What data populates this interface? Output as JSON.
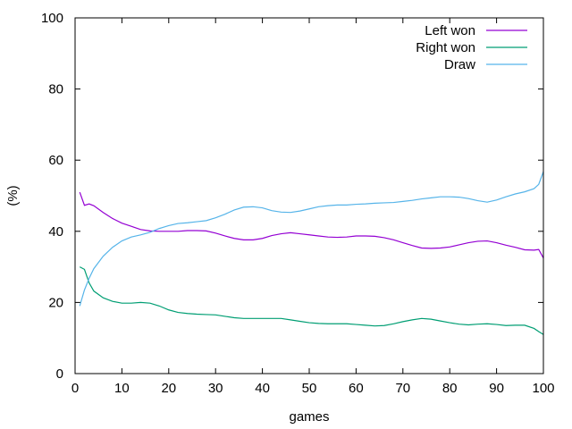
{
  "chart_data": {
    "type": "line",
    "title": "",
    "xlabel": "games",
    "ylabel": "(%)",
    "xlim": [
      0,
      100
    ],
    "ylim": [
      0,
      100
    ],
    "x_ticks": [
      0,
      10,
      20,
      30,
      40,
      50,
      60,
      70,
      80,
      90,
      100
    ],
    "y_ticks": [
      0,
      20,
      40,
      60,
      80,
      100
    ],
    "grid": false,
    "legend_position": "top-right",
    "series": [
      {
        "name": "Left won",
        "color": "#9400d3",
        "x": [
          1,
          2,
          3,
          4,
          6,
          8,
          10,
          12,
          14,
          16,
          18,
          20,
          22,
          24,
          26,
          28,
          30,
          32,
          34,
          36,
          38,
          40,
          42,
          44,
          46,
          48,
          50,
          52,
          54,
          56,
          58,
          60,
          62,
          64,
          66,
          68,
          70,
          72,
          74,
          76,
          78,
          80,
          82,
          84,
          86,
          88,
          90,
          92,
          94,
          96,
          98,
          99,
          100
        ],
        "y": [
          51,
          47.3,
          47.7,
          47.2,
          45.3,
          43.6,
          42.3,
          41.4,
          40.5,
          40.1,
          40.0,
          40.0,
          40.0,
          40.2,
          40.2,
          40.1,
          39.5,
          38.7,
          38.0,
          37.6,
          37.6,
          38.0,
          38.8,
          39.3,
          39.6,
          39.3,
          39.0,
          38.7,
          38.4,
          38.3,
          38.4,
          38.7,
          38.7,
          38.6,
          38.2,
          37.6,
          36.8,
          36.0,
          35.3,
          35.2,
          35.3,
          35.6,
          36.2,
          36.8,
          37.2,
          37.3,
          36.8,
          36.1,
          35.5,
          34.8,
          34.7,
          34.9,
          32.5
        ]
      },
      {
        "name": "Right won",
        "color": "#009e73",
        "x": [
          1,
          2,
          3,
          4,
          6,
          8,
          10,
          12,
          14,
          16,
          18,
          20,
          22,
          24,
          26,
          28,
          30,
          32,
          34,
          36,
          38,
          40,
          42,
          44,
          46,
          48,
          50,
          52,
          54,
          56,
          58,
          60,
          62,
          64,
          66,
          68,
          70,
          72,
          74,
          76,
          78,
          80,
          82,
          84,
          86,
          88,
          90,
          92,
          94,
          96,
          98,
          99,
          100
        ],
        "y": [
          30.0,
          29.3,
          25.5,
          23.2,
          21.3,
          20.3,
          19.8,
          19.8,
          20.0,
          19.8,
          19.0,
          17.9,
          17.2,
          16.9,
          16.7,
          16.6,
          16.5,
          16.1,
          15.7,
          15.5,
          15.5,
          15.5,
          15.5,
          15.5,
          15.1,
          14.7,
          14.3,
          14.1,
          14.0,
          14.0,
          14.0,
          13.8,
          13.6,
          13.4,
          13.5,
          14.0,
          14.6,
          15.1,
          15.5,
          15.3,
          14.8,
          14.3,
          13.9,
          13.7,
          13.9,
          14.0,
          13.8,
          13.5,
          13.6,
          13.6,
          12.7,
          11.8,
          11.0
        ]
      },
      {
        "name": "Draw",
        "color": "#56b4e9",
        "x": [
          1,
          2,
          3,
          4,
          6,
          8,
          10,
          12,
          14,
          16,
          18,
          20,
          22,
          24,
          26,
          28,
          30,
          32,
          34,
          36,
          38,
          40,
          42,
          44,
          46,
          48,
          50,
          52,
          54,
          56,
          58,
          60,
          62,
          64,
          66,
          68,
          70,
          72,
          74,
          76,
          78,
          80,
          82,
          84,
          86,
          88,
          90,
          92,
          94,
          96,
          98,
          99,
          100
        ],
        "y": [
          19.0,
          23.5,
          26.8,
          29.5,
          33.0,
          35.5,
          37.3,
          38.4,
          39.0,
          39.7,
          40.8,
          41.6,
          42.2,
          42.4,
          42.7,
          43.0,
          43.8,
          44.8,
          46.0,
          46.8,
          46.9,
          46.6,
          45.8,
          45.4,
          45.3,
          45.7,
          46.3,
          46.9,
          47.2,
          47.4,
          47.4,
          47.6,
          47.7,
          47.9,
          48.0,
          48.1,
          48.4,
          48.7,
          49.1,
          49.4,
          49.7,
          49.7,
          49.6,
          49.2,
          48.6,
          48.2,
          48.8,
          49.7,
          50.5,
          51.1,
          52.0,
          53.2,
          56.8
        ]
      }
    ]
  }
}
